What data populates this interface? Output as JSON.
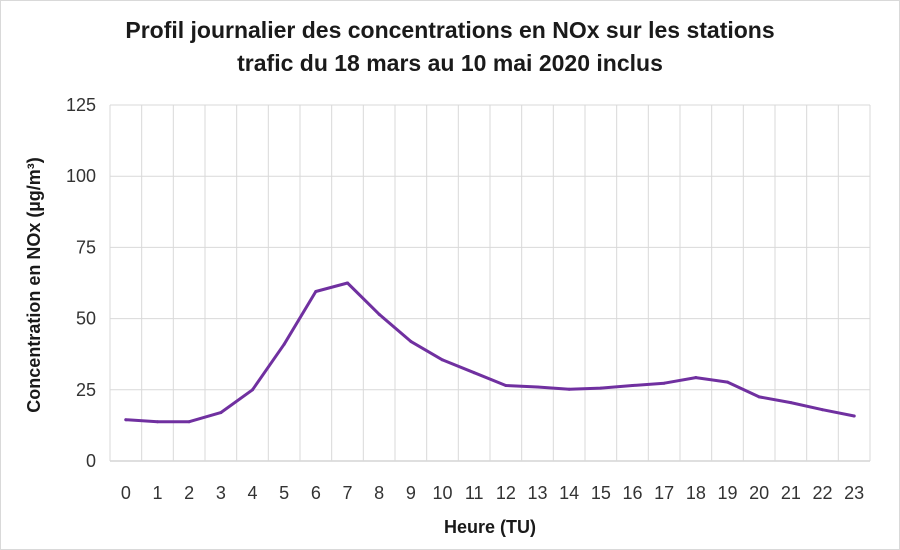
{
  "chart_data": {
    "type": "line",
    "title_line1": "Profil journalier des concentrations  en NOx sur les stations",
    "title_line2": "trafic du 18 mars au 10 mai 2020 inclus",
    "xlabel": "Heure (TU)",
    "ylabel": "Concentration en NOx (µg/m³)",
    "ylim": [
      0,
      125
    ],
    "yticks": [
      0,
      25,
      50,
      75,
      100,
      125
    ],
    "grid": true,
    "line_color": "#7030a0",
    "categories": [
      "0",
      "1",
      "2",
      "3",
      "4",
      "5",
      "6",
      "7",
      "8",
      "9",
      "10",
      "11",
      "12",
      "13",
      "14",
      "15",
      "16",
      "17",
      "18",
      "19",
      "20",
      "21",
      "22",
      "23"
    ],
    "values": [
      14.5,
      13.8,
      13.8,
      17,
      25,
      41,
      59.5,
      62.5,
      51.5,
      42,
      35.5,
      31,
      26.5,
      26,
      25.2,
      25.6,
      26.5,
      27.3,
      29.3,
      27.7,
      22.5,
      20.5,
      18,
      15.8
    ]
  }
}
